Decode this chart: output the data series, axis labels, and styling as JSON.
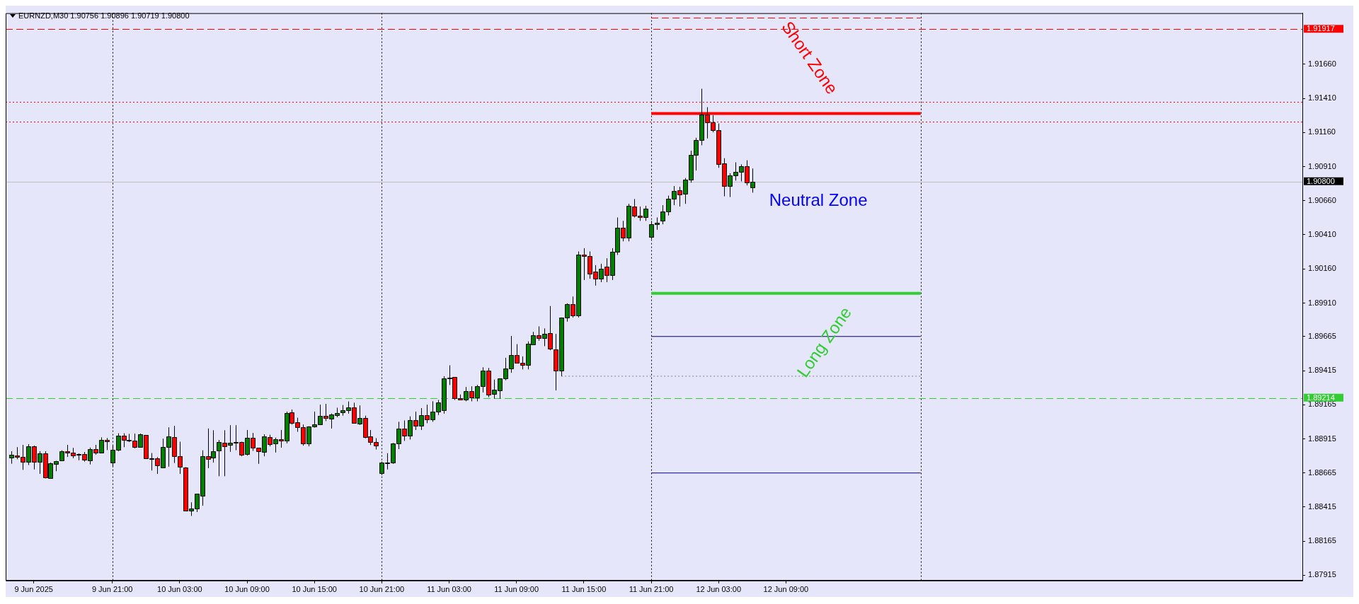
{
  "chart_data": {
    "type": "candlestick",
    "title": "EURNZD,M30 1.90756 1.90896 1.90719 1.90800",
    "x": [
      "2025-06-09T12:00",
      "2025-06-09T12:30",
      "2025-06-09T13:00",
      "2025-06-09T13:30",
      "2025-06-09T14:00",
      "2025-06-09T14:30",
      "2025-06-09T15:00",
      "2025-06-09T15:30",
      "2025-06-09T16:00",
      "2025-06-09T16:30",
      "2025-06-09T17:00",
      "2025-06-09T17:30",
      "2025-06-09T18:00",
      "2025-06-09T18:30",
      "2025-06-09T19:00",
      "2025-06-09T19:30",
      "2025-06-09T20:00",
      "2025-06-09T20:30",
      "2025-06-09T21:00",
      "2025-06-09T21:30",
      "2025-06-09T22:00",
      "2025-06-09T22:30",
      "2025-06-09T23:00",
      "2025-06-09T23:30",
      "2025-06-10T00:00",
      "2025-06-10T00:30",
      "2025-06-10T01:00",
      "2025-06-10T01:30",
      "2025-06-10T02:00",
      "2025-06-10T02:30",
      "2025-06-10T03:00",
      "2025-06-10T03:30",
      "2025-06-10T04:00",
      "2025-06-10T04:30",
      "2025-06-10T05:00",
      "2025-06-10T05:30",
      "2025-06-10T06:00",
      "2025-06-10T06:30",
      "2025-06-10T07:00",
      "2025-06-10T07:30",
      "2025-06-10T08:00",
      "2025-06-10T08:30",
      "2025-06-10T09:00",
      "2025-06-10T09:30",
      "2025-06-10T10:00",
      "2025-06-10T10:30",
      "2025-06-10T11:00",
      "2025-06-10T11:30",
      "2025-06-10T12:00",
      "2025-06-10T12:30",
      "2025-06-10T13:00",
      "2025-06-10T13:30",
      "2025-06-10T14:00",
      "2025-06-10T14:30",
      "2025-06-10T15:00",
      "2025-06-10T15:30",
      "2025-06-10T16:00",
      "2025-06-10T16:30",
      "2025-06-10T17:00",
      "2025-06-10T17:30",
      "2025-06-10T18:00",
      "2025-06-10T18:30",
      "2025-06-10T19:00",
      "2025-06-10T19:30",
      "2025-06-10T20:00",
      "2025-06-10T20:30",
      "2025-06-10T21:00",
      "2025-06-10T21:30",
      "2025-06-10T22:00",
      "2025-06-10T22:30",
      "2025-06-10T23:00",
      "2025-06-10T23:30",
      "2025-06-11T00:00",
      "2025-06-11T00:30",
      "2025-06-11T01:00",
      "2025-06-11T01:30",
      "2025-06-11T02:00",
      "2025-06-11T02:30",
      "2025-06-11T03:00",
      "2025-06-11T03:30",
      "2025-06-11T04:00",
      "2025-06-11T04:30",
      "2025-06-11T05:00",
      "2025-06-11T05:30",
      "2025-06-11T06:00",
      "2025-06-11T06:30",
      "2025-06-11T07:00",
      "2025-06-11T07:30",
      "2025-06-11T08:00",
      "2025-06-11T08:30",
      "2025-06-11T09:00",
      "2025-06-11T09:30",
      "2025-06-11T10:00",
      "2025-06-11T10:30",
      "2025-06-11T11:00",
      "2025-06-11T11:30",
      "2025-06-11T12:00",
      "2025-06-11T12:30",
      "2025-06-11T13:00",
      "2025-06-11T13:30",
      "2025-06-11T14:00",
      "2025-06-11T14:30",
      "2025-06-11T15:00",
      "2025-06-11T15:30",
      "2025-06-11T16:00",
      "2025-06-11T16:30",
      "2025-06-11T17:00",
      "2025-06-11T17:30",
      "2025-06-11T18:00",
      "2025-06-11T18:30",
      "2025-06-11T19:00",
      "2025-06-11T19:30",
      "2025-06-11T20:00",
      "2025-06-11T20:30",
      "2025-06-11T21:00",
      "2025-06-11T21:30",
      "2025-06-11T22:00",
      "2025-06-11T22:30",
      "2025-06-11T23:00",
      "2025-06-11T23:30",
      "2025-06-12T00:00",
      "2025-06-12T00:30",
      "2025-06-12T01:00",
      "2025-06-12T01:30",
      "2025-06-12T02:00",
      "2025-06-12T02:30",
      "2025-06-12T03:00",
      "2025-06-12T03:30",
      "2025-06-12T04:00",
      "2025-06-12T04:30",
      "2025-06-12T05:00",
      "2025-06-12T05:30",
      "2025-06-12T06:00"
    ],
    "ohlc": [
      [
        1.88779,
        1.88824,
        1.88733,
        1.88796
      ],
      [
        1.88794,
        1.88854,
        1.88766,
        1.88784
      ],
      [
        1.88784,
        1.88871,
        1.88688,
        1.88744
      ],
      [
        1.88744,
        1.88876,
        1.88723,
        1.88859
      ],
      [
        1.88859,
        1.88866,
        1.88691,
        1.88744
      ],
      [
        1.88744,
        1.88824,
        1.88658,
        1.88809
      ],
      [
        1.88809,
        1.88824,
        1.88625,
        1.88633
      ],
      [
        1.88625,
        1.88741,
        1.88625,
        1.88736
      ],
      [
        1.88733,
        1.88754,
        1.88678,
        1.88754
      ],
      [
        1.88758,
        1.88831,
        1.88751,
        1.88824
      ],
      [
        1.88824,
        1.88871,
        1.88783,
        1.88813
      ],
      [
        1.88814,
        1.88849,
        1.88773,
        1.88794
      ],
      [
        1.88803,
        1.88808,
        1.88758,
        1.88799
      ],
      [
        1.88803,
        1.88819,
        1.88748,
        1.88763
      ],
      [
        1.88758,
        1.88851,
        1.88728,
        1.88841
      ],
      [
        1.88839,
        1.88871,
        1.88799,
        1.88813
      ],
      [
        1.88813,
        1.88926,
        1.88813,
        1.88909
      ],
      [
        1.88909,
        1.88921,
        1.88833,
        1.88897
      ],
      [
        1.88743,
        1.88871,
        1.88708,
        1.88834
      ],
      [
        1.88834,
        1.88956,
        1.88824,
        1.88939
      ],
      [
        1.88939,
        1.88956,
        1.88854,
        1.88909
      ],
      [
        1.88909,
        1.88951,
        1.88891,
        1.88902
      ],
      [
        1.88904,
        1.88954,
        1.88846,
        1.88853
      ],
      [
        1.88853,
        1.88954,
        1.88853,
        1.88949
      ],
      [
        1.88944,
        1.88944,
        1.88774,
        1.88774
      ],
      [
        1.88774,
        1.88811,
        1.88683,
        1.88773
      ],
      [
        1.88774,
        1.88781,
        1.88658,
        1.8872
      ],
      [
        1.88705,
        1.88916,
        1.88705,
        1.88854
      ],
      [
        1.88854,
        1.88999,
        1.88711,
        1.88931
      ],
      [
        1.88929,
        1.8901,
        1.88738,
        1.88789
      ],
      [
        1.88789,
        1.88894,
        1.88658,
        1.8871
      ],
      [
        1.88705,
        1.88708,
        1.88384,
        1.8839
      ],
      [
        1.8839,
        1.8845,
        1.8835,
        1.88405
      ],
      [
        1.88405,
        1.88512,
        1.88379,
        1.88512
      ],
      [
        1.885,
        1.88831,
        1.88425,
        1.88789
      ],
      [
        1.88789,
        1.88991,
        1.887,
        1.88769
      ],
      [
        1.88779,
        1.88978,
        1.88741,
        1.88824
      ],
      [
        1.88827,
        1.88907,
        1.88641,
        1.88894
      ],
      [
        1.88889,
        1.88978,
        1.88641,
        1.88862
      ],
      [
        1.88869,
        1.89015,
        1.8882,
        1.88889
      ],
      [
        1.88894,
        1.89015,
        1.88832,
        1.88892
      ],
      [
        1.88894,
        1.88894,
        1.88787,
        1.88797
      ],
      [
        1.88802,
        1.8898,
        1.88792,
        1.88924
      ],
      [
        1.88924,
        1.88958,
        1.88827,
        1.88849
      ],
      [
        1.88849,
        1.88849,
        1.88732,
        1.88822
      ],
      [
        1.88819,
        1.88948,
        1.88787,
        1.88934
      ],
      [
        1.88929,
        1.88945,
        1.8886,
        1.88877
      ],
      [
        1.88879,
        1.88924,
        1.88815,
        1.88914
      ],
      [
        1.88914,
        1.8898,
        1.8885,
        1.88902
      ],
      [
        1.88902,
        1.89115,
        1.88882,
        1.89103
      ],
      [
        1.89108,
        1.8913,
        1.8902,
        1.89032
      ],
      [
        1.89038,
        1.8907,
        1.88967,
        1.88998
      ],
      [
        1.88998,
        1.8902,
        1.88865,
        1.88882
      ],
      [
        1.88882,
        1.89008,
        1.8886,
        1.89008
      ],
      [
        1.89007,
        1.89115,
        1.88997,
        1.89023
      ],
      [
        1.89022,
        1.89166,
        1.89017,
        1.89085
      ],
      [
        1.89085,
        1.89171,
        1.89045,
        1.89068
      ],
      [
        1.89061,
        1.89101,
        1.8899,
        1.89093
      ],
      [
        1.89091,
        1.89143,
        1.89073,
        1.89105
      ],
      [
        1.89108,
        1.89163,
        1.89085,
        1.89125
      ],
      [
        1.89126,
        1.89189,
        1.891,
        1.89143
      ],
      [
        1.89143,
        1.8918,
        1.89032,
        1.89032
      ],
      [
        1.89028,
        1.8916,
        1.89017,
        1.89068
      ],
      [
        1.89068,
        1.89085,
        1.88919,
        1.88927
      ],
      [
        1.88934,
        1.8898,
        1.8887,
        1.88892
      ],
      [
        1.88894,
        1.8892,
        1.88837,
        1.88867
      ],
      [
        1.88662,
        1.88749,
        1.88649,
        1.88739
      ],
      [
        1.88742,
        1.8881,
        1.88691,
        1.88741
      ],
      [
        1.88739,
        1.88885,
        1.88732,
        1.88879
      ],
      [
        1.8888,
        1.8904,
        1.8884,
        1.8899
      ],
      [
        1.8899,
        1.8905,
        1.889,
        1.8894
      ],
      [
        1.8894,
        1.8908,
        1.8891,
        1.8905
      ],
      [
        1.8905,
        1.89115,
        1.8898,
        1.8901
      ],
      [
        1.8901,
        1.8914,
        1.8898,
        1.8909
      ],
      [
        1.8909,
        1.89165,
        1.8903,
        1.8906
      ],
      [
        1.8906,
        1.8919,
        1.8904,
        1.89115
      ],
      [
        1.89115,
        1.892,
        1.8909,
        1.8918
      ],
      [
        1.89125,
        1.89374,
        1.891,
        1.89359
      ],
      [
        1.89364,
        1.89454,
        1.8931,
        1.89362
      ],
      [
        1.89369,
        1.89369,
        1.892,
        1.89215
      ],
      [
        1.89215,
        1.8924,
        1.892,
        1.89205
      ],
      [
        1.892,
        1.89295,
        1.8919,
        1.89265
      ],
      [
        1.89265,
        1.893,
        1.8919,
        1.8922
      ],
      [
        1.8922,
        1.8931,
        1.8919,
        1.893
      ],
      [
        1.893,
        1.89439,
        1.89255,
        1.89414
      ],
      [
        1.89414,
        1.89434,
        1.8922,
        1.8924
      ],
      [
        1.89245,
        1.89349,
        1.8921,
        1.89275
      ],
      [
        1.8927,
        1.89359,
        1.8921,
        1.89359
      ],
      [
        1.89359,
        1.89509,
        1.89344,
        1.89429
      ],
      [
        1.89429,
        1.89669,
        1.89399,
        1.89529
      ],
      [
        1.89529,
        1.89609,
        1.89474,
        1.89474
      ],
      [
        1.89474,
        1.89519,
        1.89424,
        1.89459
      ],
      [
        1.89459,
        1.89629,
        1.89424,
        1.89614
      ],
      [
        1.89609,
        1.89699,
        1.89604,
        1.89674
      ],
      [
        1.89674,
        1.89739,
        1.89634,
        1.89654
      ],
      [
        1.89654,
        1.89724,
        1.89594,
        1.89684
      ],
      [
        1.89689,
        1.89888,
        1.89564,
        1.89574
      ],
      [
        1.89569,
        1.89684,
        1.8927,
        1.89414
      ],
      [
        1.89414,
        1.89804,
        1.89374,
        1.89804
      ],
      [
        1.89804,
        1.89908,
        1.89774,
        1.89903
      ],
      [
        1.89903,
        1.89958,
        1.89804,
        1.89819
      ],
      [
        1.89819,
        1.90288,
        1.89804,
        1.90263
      ],
      [
        1.90263,
        1.90312,
        1.90078,
        1.90253
      ],
      [
        1.90253,
        1.90288,
        1.90088,
        1.90123
      ],
      [
        1.90138,
        1.90188,
        1.90038,
        1.90088
      ],
      [
        1.90088,
        1.90198,
        1.90063,
        1.90163
      ],
      [
        1.90178,
        1.90238,
        1.90063,
        1.90113
      ],
      [
        1.90113,
        1.90312,
        1.90078,
        1.90288
      ],
      [
        1.90288,
        1.90537,
        1.90263,
        1.90462
      ],
      [
        1.90462,
        1.90512,
        1.90362,
        1.90387
      ],
      [
        1.90387,
        1.90637,
        1.90362,
        1.90622
      ],
      [
        1.90617,
        1.90672,
        1.90537,
        1.90552
      ],
      [
        1.90552,
        1.90617,
        1.90512,
        1.90537
      ],
      [
        1.90537,
        1.90622,
        1.90512,
        1.90602
      ],
      [
        1.90397,
        1.90512,
        1.90377,
        1.90487
      ],
      [
        1.90487,
        1.90537,
        1.90447,
        1.90497
      ],
      [
        1.90512,
        1.90627,
        1.90487,
        1.90582
      ],
      [
        1.90582,
        1.90697,
        1.90552,
        1.90672
      ],
      [
        1.90672,
        1.90767,
        1.90627,
        1.90732
      ],
      [
        1.90737,
        1.90762,
        1.90617,
        1.90707
      ],
      [
        1.90712,
        1.90826,
        1.90637,
        1.90816
      ],
      [
        1.90816,
        1.91026,
        1.90792,
        1.90996
      ],
      [
        1.90996,
        1.91121,
        1.90881,
        1.91106
      ],
      [
        1.91106,
        1.9148,
        1.91066,
        1.91291
      ],
      [
        1.91291,
        1.91345,
        1.91116,
        1.91236
      ],
      [
        1.91236,
        1.91286,
        1.91161,
        1.91176
      ],
      [
        1.91176,
        1.91226,
        1.90901,
        1.90926
      ],
      [
        1.90931,
        1.90971,
        1.90692,
        1.90767
      ],
      [
        1.90767,
        1.90861,
        1.90687,
        1.90846
      ],
      [
        1.90846,
        1.90941,
        1.90807,
        1.90871
      ],
      [
        1.90871,
        1.90926,
        1.90802,
        1.90911
      ],
      [
        1.90911,
        1.90956,
        1.90772,
        1.90792
      ],
      [
        1.90756,
        1.90896,
        1.90719,
        1.908
      ]
    ],
    "series": [
      {
        "type": "line",
        "color": "#ff0000",
        "x": [
          "2025-06-11T21:00",
          "2025-06-12T21:00"
        ],
        "values": [
          1.91998,
          1.91998
        ],
        "line_style": "dashed"
      },
      {
        "type": "line",
        "color": "#ff0000",
        "x": [
          "2025-06-11T21:00",
          "2025-06-12T21:00"
        ],
        "values": [
          1.91299,
          1.91299
        ],
        "line_style": "solid"
      },
      {
        "type": "line",
        "color": "#32cd32",
        "x": [
          "2025-06-11T21:00",
          "2025-06-12T21:00"
        ],
        "values": [
          1.89981,
          1.89981
        ],
        "line_style": "solid"
      },
      {
        "type": "line",
        "color": "#000080",
        "x": [
          "2025-06-11T21:00",
          "2025-06-12T21:00"
        ],
        "values": [
          1.89665,
          1.89665
        ],
        "line_style": "solid"
      },
      {
        "type": "line",
        "color": "#808080",
        "x": [
          "2025-06-11T13:00",
          "2025-06-12T21:00"
        ],
        "values": [
          1.89374,
          1.89374
        ],
        "line_style": "dotted"
      },
      {
        "type": "line",
        "color": "#000080",
        "x": [
          "2025-06-11T21:00",
          "2025-06-12T21:00"
        ],
        "values": [
          1.88665,
          1.88665
        ],
        "line_style": "solid"
      }
    ],
    "xlim": [
      "2025-06-09T11:30",
      "2025-06-14T07:00"
    ],
    "xticks": [
      {
        "value": "2025-06-09T14:00",
        "label": "9 Jun 2025"
      },
      {
        "value": "2025-06-09T21:00",
        "label": "9 Jun 21:00"
      },
      {
        "value": "2025-06-10T03:00",
        "label": "10 Jun 03:00"
      },
      {
        "value": "2025-06-10T09:00",
        "label": "10 Jun 09:00"
      },
      {
        "value": "2025-06-10T15:00",
        "label": "10 Jun 15:00"
      },
      {
        "value": "2025-06-10T21:00",
        "label": "10 Jun 21:00"
      },
      {
        "value": "2025-06-11T03:00",
        "label": "11 Jun 03:00"
      },
      {
        "value": "2025-06-11T09:00",
        "label": "11 Jun 09:00"
      },
      {
        "value": "2025-06-11T15:00",
        "label": "11 Jun 15:00"
      },
      {
        "value": "2025-06-11T21:00",
        "label": "11 Jun 21:00"
      },
      {
        "value": "2025-06-12T03:00",
        "label": "12 Jun 03:00"
      },
      {
        "value": "2025-06-12T09:00",
        "label": "12 Jun 09:00"
      }
    ],
    "ylim": [
      1.87877,
      1.92034
    ],
    "yticks": [
      {
        "value": 1.9166,
        "label": "1.91660"
      },
      {
        "value": 1.9141,
        "label": "1.91410"
      },
      {
        "value": 1.9116,
        "label": "1.91160"
      },
      {
        "value": 1.9091,
        "label": "1.90910"
      },
      {
        "value": 1.9066,
        "label": "1.90660"
      },
      {
        "value": 1.9041,
        "label": "1.90410"
      },
      {
        "value": 1.9016,
        "label": "1.90160"
      },
      {
        "value": 1.8991,
        "label": "1.89910"
      },
      1.89665,
      1.89415,
      1.89165,
      1.88915,
      1.88665,
      1.88415,
      1.88165,
      1.87915
    ],
    "ref_lines": [
      {
        "axis": "x",
        "value": "2025-06-09T21:00",
        "color": "#000000",
        "line_style": "dotted"
      },
      {
        "axis": "x",
        "value": "2025-06-10T21:00",
        "color": "#000000",
        "line_style": "dotted"
      },
      {
        "axis": "x",
        "value": "2025-06-11T21:00",
        "color": "#000000",
        "line_style": "dotted"
      },
      {
        "axis": "x",
        "value": "2025-06-12T21:00",
        "color": "#000000",
        "line_style": "dotted"
      },
      {
        "axis": "y",
        "value": 1.91917,
        "label": "1.91917",
        "color": "#ff0000",
        "line_style": "dashed"
      },
      {
        "axis": "y",
        "value": 1.91384,
        "color": "#ff0000",
        "line_style": "dotted"
      },
      {
        "axis": "y",
        "value": 1.91239,
        "color": "#ff0000",
        "line_style": "dotted"
      },
      {
        "axis": "y",
        "value": 1.908,
        "label": "1.90800",
        "color": "#c0c0c0",
        "line_style": "solid"
      },
      {
        "axis": "y",
        "value": 1.89214,
        "label": "1.89214",
        "color": "#32cd32",
        "line_style": "dashed"
      }
    ],
    "annotations": [
      "Short Zone",
      "Neutral Zone",
      "Long Zone"
    ],
    "legend": false
  }
}
